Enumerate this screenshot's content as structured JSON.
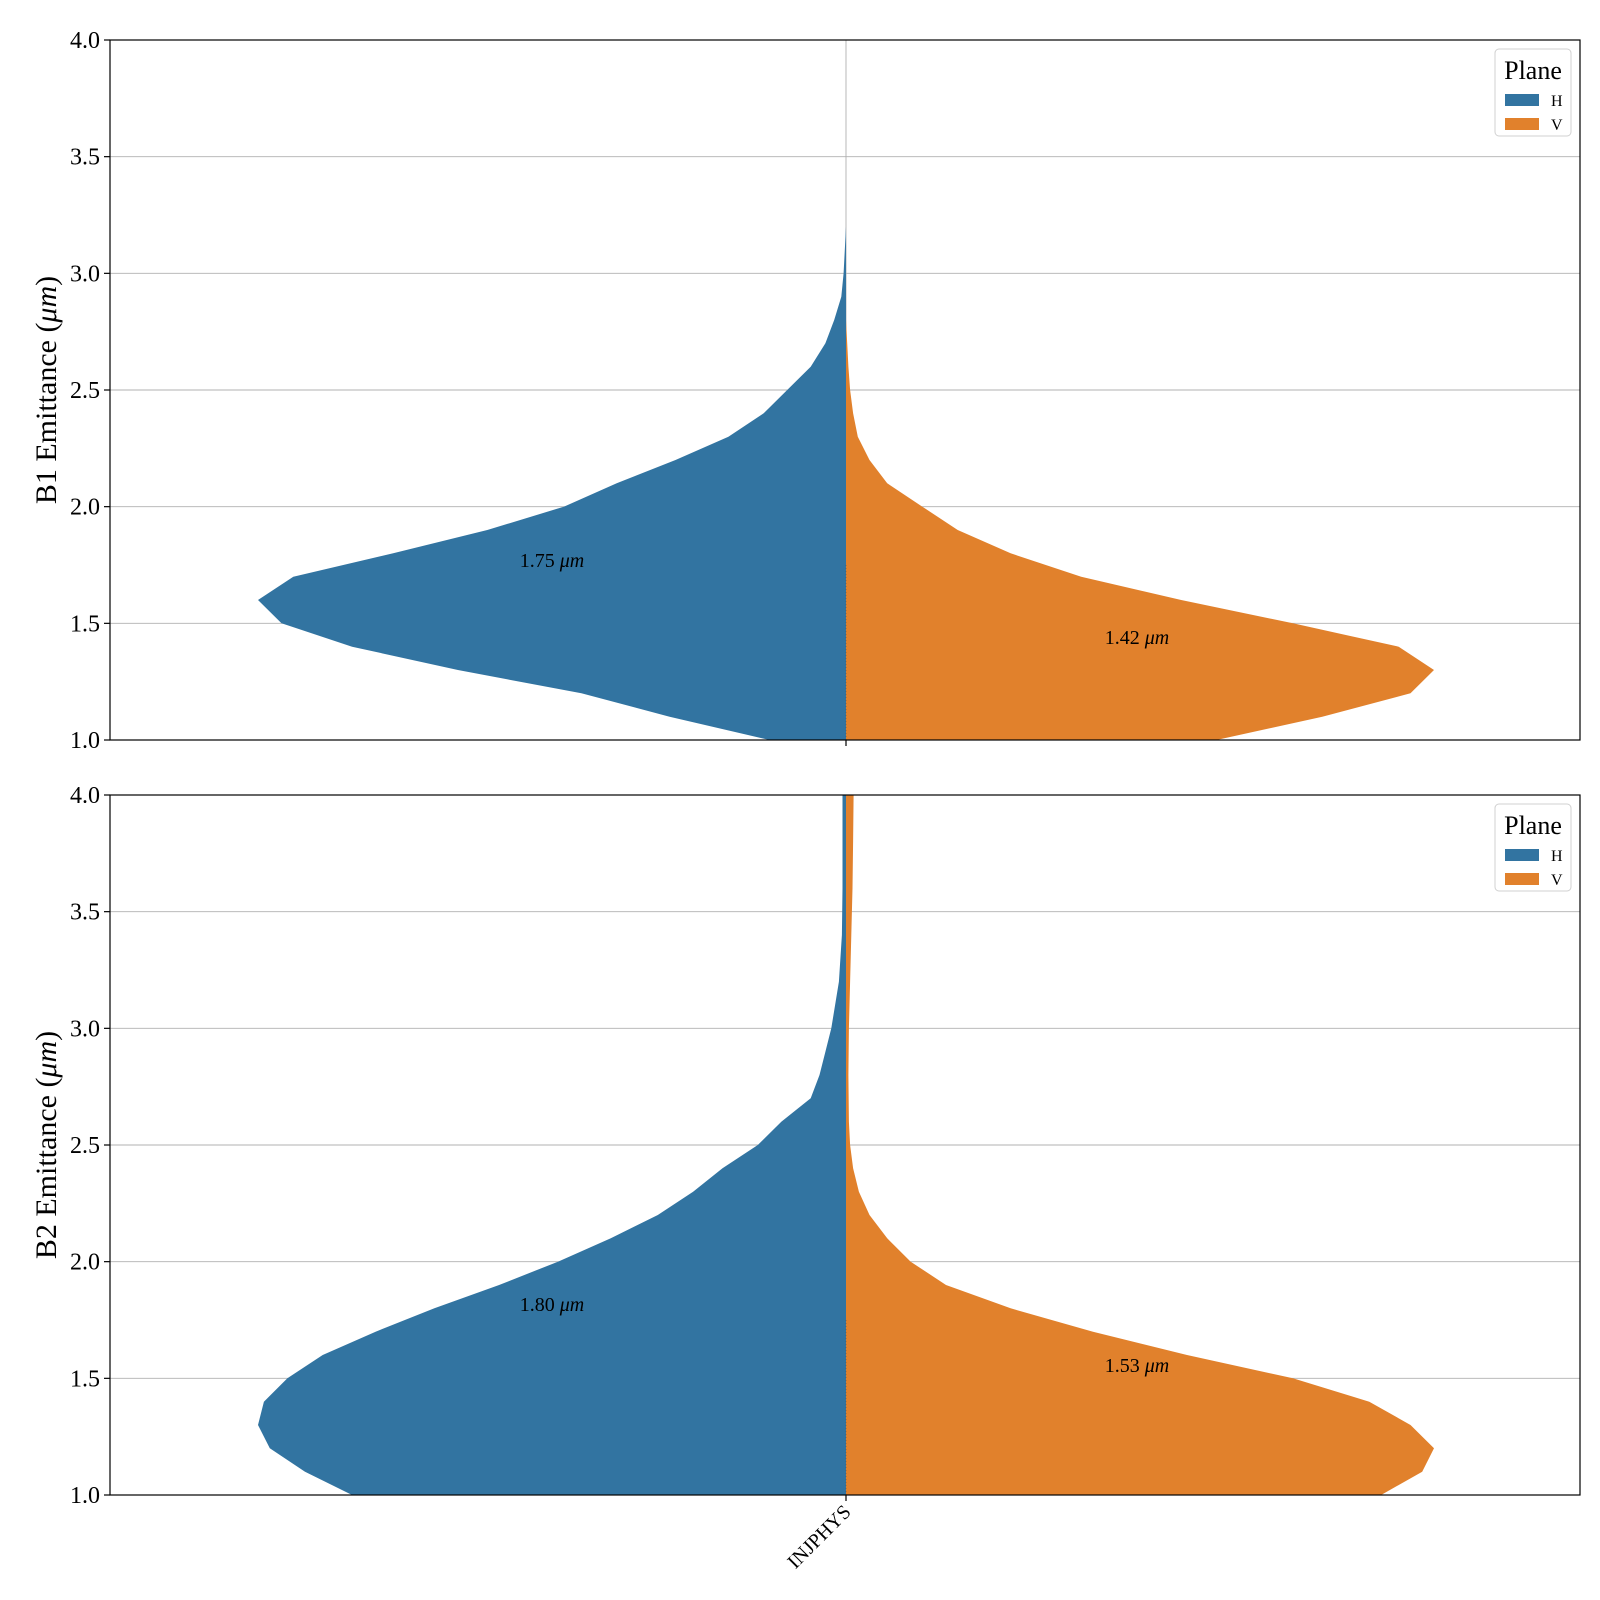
{
  "colors": {
    "H": "#3274a1",
    "V": "#e1812c",
    "grid": "#b0b0b0",
    "axis": "#000000"
  },
  "chart_data": [
    {
      "type": "violin",
      "ylabel_prefix": "B1 Emittance (",
      "ylabel_unit": "μm",
      "ylabel_suffix": ")",
      "ylim": [
        1.0,
        4.0
      ],
      "yticks": [
        "1.0",
        "1.5",
        "2.0",
        "2.5",
        "3.0",
        "3.5",
        "4.0"
      ],
      "grid": true,
      "legend": {
        "title": "Plane",
        "placement": "top-right",
        "entries": [
          "H",
          "V"
        ]
      },
      "categories": [
        "INJPHYS"
      ],
      "series": [
        {
          "name": "H",
          "color": "#3274a1",
          "side": "left",
          "median_label": "1.75",
          "median_unit": "μm",
          "density": [
            [
              1.0,
              0.13
            ],
            [
              1.1,
              0.3
            ],
            [
              1.2,
              0.45
            ],
            [
              1.3,
              0.66
            ],
            [
              1.4,
              0.84
            ],
            [
              1.5,
              0.96
            ],
            [
              1.6,
              1.0
            ],
            [
              1.7,
              0.94
            ],
            [
              1.8,
              0.77
            ],
            [
              1.9,
              0.61
            ],
            [
              2.0,
              0.48
            ],
            [
              2.1,
              0.39
            ],
            [
              2.2,
              0.29
            ],
            [
              2.3,
              0.2
            ],
            [
              2.4,
              0.14
            ],
            [
              2.5,
              0.1
            ],
            [
              2.6,
              0.06
            ],
            [
              2.7,
              0.035
            ],
            [
              2.8,
              0.02
            ],
            [
              2.9,
              0.008
            ],
            [
              3.0,
              0.004
            ],
            [
              3.1,
              0.002
            ],
            [
              3.2,
              0.0
            ]
          ]
        },
        {
          "name": "V",
          "color": "#e1812c",
          "side": "right",
          "median_label": "1.42",
          "median_unit": "μm",
          "density": [
            [
              1.0,
              0.63
            ],
            [
              1.1,
              0.81
            ],
            [
              1.2,
              0.96
            ],
            [
              1.3,
              1.0
            ],
            [
              1.4,
              0.94
            ],
            [
              1.5,
              0.76
            ],
            [
              1.6,
              0.57
            ],
            [
              1.7,
              0.4
            ],
            [
              1.8,
              0.28
            ],
            [
              1.9,
              0.19
            ],
            [
              2.0,
              0.13
            ],
            [
              2.1,
              0.07
            ],
            [
              2.2,
              0.04
            ],
            [
              2.3,
              0.02
            ],
            [
              2.4,
              0.012
            ],
            [
              2.5,
              0.007
            ],
            [
              2.6,
              0.004
            ],
            [
              2.7,
              0.002
            ],
            [
              2.8,
              0.0
            ]
          ]
        }
      ]
    },
    {
      "type": "violin",
      "ylabel_prefix": "B2 Emittance (",
      "ylabel_unit": "μm",
      "ylabel_suffix": ")",
      "ylim": [
        1.0,
        4.0
      ],
      "yticks": [
        "1.0",
        "1.5",
        "2.0",
        "2.5",
        "3.0",
        "3.5",
        "4.0"
      ],
      "grid": true,
      "legend": {
        "title": "Plane",
        "placement": "top-right",
        "entries": [
          "H",
          "V"
        ]
      },
      "categories": [
        "INJPHYS"
      ],
      "series": [
        {
          "name": "H",
          "color": "#3274a1",
          "side": "left",
          "median_label": "1.80",
          "median_unit": "μm",
          "density": [
            [
              1.0,
              0.84
            ],
            [
              1.1,
              0.92
            ],
            [
              1.2,
              0.98
            ],
            [
              1.3,
              1.0
            ],
            [
              1.4,
              0.99
            ],
            [
              1.5,
              0.95
            ],
            [
              1.6,
              0.89
            ],
            [
              1.7,
              0.8
            ],
            [
              1.8,
              0.7
            ],
            [
              1.9,
              0.59
            ],
            [
              2.0,
              0.49
            ],
            [
              2.1,
              0.4
            ],
            [
              2.2,
              0.32
            ],
            [
              2.3,
              0.26
            ],
            [
              2.4,
              0.21
            ],
            [
              2.5,
              0.15
            ],
            [
              2.6,
              0.11
            ],
            [
              2.7,
              0.06
            ],
            [
              2.8,
              0.045
            ],
            [
              2.9,
              0.035
            ],
            [
              3.0,
              0.025
            ],
            [
              3.2,
              0.012
            ],
            [
              3.4,
              0.007
            ],
            [
              3.6,
              0.006
            ],
            [
              3.8,
              0.006
            ],
            [
              4.0,
              0.006
            ]
          ]
        },
        {
          "name": "V",
          "color": "#e1812c",
          "side": "right",
          "median_label": "1.53",
          "median_unit": "μm",
          "density": [
            [
              1.0,
              0.91
            ],
            [
              1.1,
              0.98
            ],
            [
              1.2,
              1.0
            ],
            [
              1.3,
              0.96
            ],
            [
              1.4,
              0.89
            ],
            [
              1.5,
              0.76
            ],
            [
              1.6,
              0.58
            ],
            [
              1.7,
              0.42
            ],
            [
              1.8,
              0.28
            ],
            [
              1.9,
              0.17
            ],
            [
              2.0,
              0.11
            ],
            [
              2.1,
              0.07
            ],
            [
              2.2,
              0.04
            ],
            [
              2.3,
              0.022
            ],
            [
              2.4,
              0.012
            ],
            [
              2.5,
              0.007
            ],
            [
              2.6,
              0.005
            ],
            [
              2.8,
              0.004
            ],
            [
              3.0,
              0.005
            ],
            [
              3.2,
              0.007
            ],
            [
              3.4,
              0.009
            ],
            [
              3.6,
              0.011
            ],
            [
              3.8,
              0.012
            ],
            [
              4.0,
              0.013
            ]
          ]
        }
      ]
    }
  ]
}
